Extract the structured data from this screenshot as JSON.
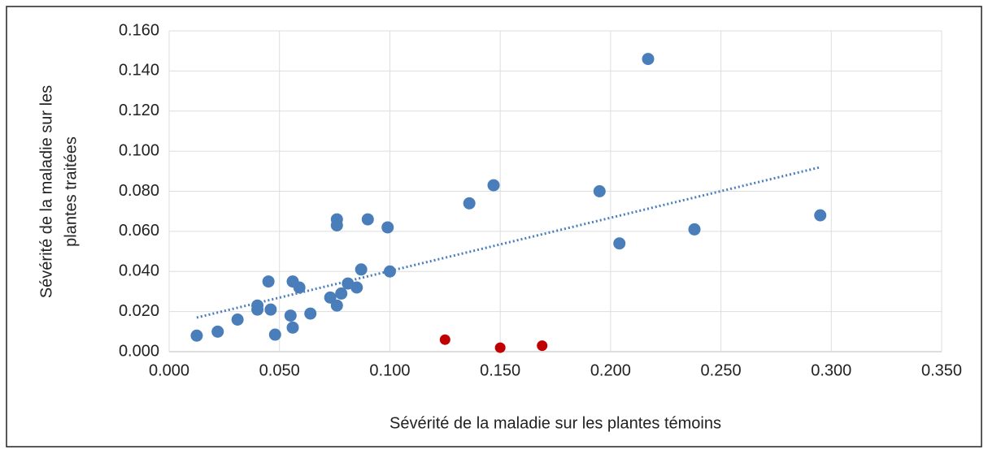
{
  "chart_data": {
    "type": "scatter",
    "xlabel": "Sévérité de la maladie sur les plantes témoins",
    "ylabel": [
      "Sévérité de la maladie sur les",
      "plantes  traitées"
    ],
    "xlim": [
      0,
      0.35
    ],
    "ylim": [
      0,
      0.16
    ],
    "xticks": [
      {
        "value": 0,
        "label": "0.000"
      },
      {
        "value": 0.05,
        "label": "0.050"
      },
      {
        "value": 0.1,
        "label": "0.100"
      },
      {
        "value": 0.15,
        "label": "0.150"
      },
      {
        "value": 0.2,
        "label": "0.200"
      },
      {
        "value": 0.25,
        "label": "0.250"
      },
      {
        "value": 0.3,
        "label": "0.300"
      },
      {
        "value": 0.35,
        "label": "0.350"
      }
    ],
    "yticks": [
      {
        "value": 0,
        "label": "0.000"
      },
      {
        "value": 0.02,
        "label": "0.020"
      },
      {
        "value": 0.04,
        "label": "0.040"
      },
      {
        "value": 0.06,
        "label": "0.060"
      },
      {
        "value": 0.08,
        "label": "0.080"
      },
      {
        "value": 0.1,
        "label": "0.100"
      },
      {
        "value": 0.12,
        "label": "0.120"
      },
      {
        "value": 0.14,
        "label": "0.140"
      },
      {
        "value": 0.16,
        "label": "0.160"
      }
    ],
    "grid": true,
    "series": [
      {
        "color": "#4a7ebb",
        "x": [
          0.0125,
          0.022,
          0.031,
          0.048,
          0.04,
          0.04,
          0.045,
          0.046,
          0.055,
          0.056,
          0.056,
          0.059,
          0.064,
          0.073,
          0.076,
          0.076,
          0.076,
          0.078,
          0.081,
          0.085,
          0.087,
          0.09,
          0.099,
          0.1,
          0.136,
          0.147,
          0.195,
          0.204,
          0.217,
          0.238,
          0.295
        ],
        "values": [
          0.008,
          0.01,
          0.016,
          0.0085,
          0.023,
          0.021,
          0.035,
          0.021,
          0.018,
          0.012,
          0.035,
          0.032,
          0.019,
          0.027,
          0.066,
          0.063,
          0.023,
          0.029,
          0.034,
          0.032,
          0.041,
          0.066,
          0.062,
          0.04,
          0.074,
          0.083,
          0.08,
          0.054,
          0.146,
          0.061,
          0.068
        ]
      },
      {
        "color": "#c00000",
        "x": [
          0.125,
          0.15,
          0.169
        ],
        "values": [
          0.006,
          0.002,
          0.003
        ]
      }
    ],
    "trendline": {
      "color": "#4a7ebb",
      "x": [
        0.0125,
        0.295
      ],
      "values": [
        0.017,
        0.092
      ]
    }
  }
}
